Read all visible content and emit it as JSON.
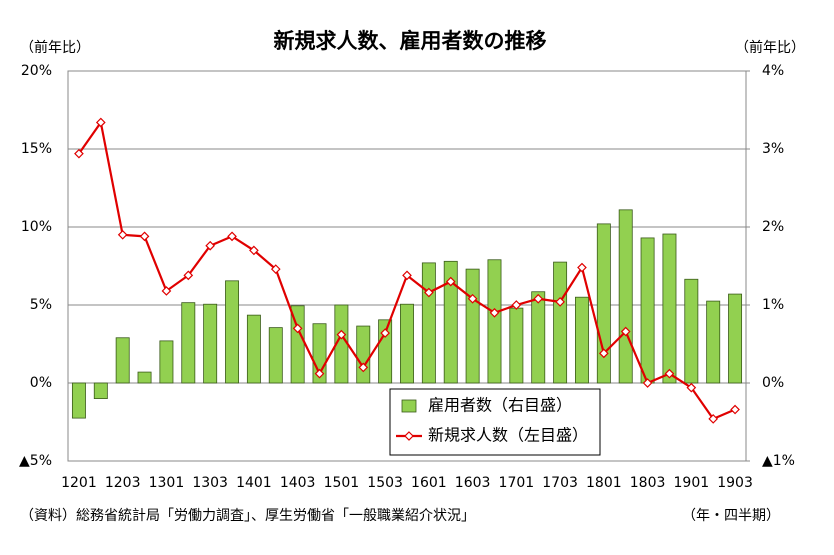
{
  "chart_data": {
    "type": "combo",
    "title": "新規求人数、雇用者数の推移",
    "y_label": "（前年比）",
    "y2_label": "（前年比）",
    "x_label": "（年・四半期）",
    "source": "（資料）総務省統計局「労働力調査」、厚生労働省「一般職業紹介状況」",
    "categories": [
      "1201",
      null,
      "1203",
      null,
      "1301",
      null,
      "1303",
      null,
      "1401",
      null,
      "1403",
      null,
      "1501",
      null,
      "1503",
      null,
      "1601",
      null,
      "1603",
      null,
      "1701",
      null,
      "1703",
      null,
      "1801",
      null,
      "1803",
      null,
      "1901",
      null,
      "1903"
    ],
    "series": [
      {
        "name": "雇用者数（右目盛）",
        "type": "bar",
        "axis": "y2",
        "color": "#92d050",
        "values": [
          -0.45,
          -0.2,
          0.58,
          0.14,
          0.54,
          1.03,
          1.01,
          1.31,
          0.87,
          0.71,
          0.99,
          0.76,
          1.0,
          0.73,
          0.81,
          1.01,
          1.54,
          1.56,
          1.46,
          1.58,
          0.96,
          1.17,
          1.55,
          1.1,
          2.04,
          2.22,
          1.86,
          1.91,
          1.33,
          1.05,
          1.14
        ]
      },
      {
        "name": "新規求人数（左目盛）",
        "type": "line",
        "axis": "y",
        "color": "#e00000",
        "values": [
          14.7,
          16.7,
          9.5,
          9.4,
          5.9,
          6.9,
          8.8,
          9.4,
          8.5,
          7.3,
          3.5,
          0.6,
          3.1,
          1.0,
          3.2,
          6.9,
          5.8,
          6.5,
          5.4,
          4.5,
          5.0,
          5.4,
          5.2,
          7.4,
          1.9,
          3.3,
          0.0,
          0.6,
          -0.3,
          -2.3,
          -1.7
        ]
      }
    ],
    "ylim": [
      -5,
      20
    ],
    "yticks": [
      {
        "value": -5,
        "label": "▲5%"
      },
      {
        "value": 0,
        "label": "0%"
      },
      {
        "value": 5,
        "label": "5%"
      },
      {
        "value": 10,
        "label": "10%"
      },
      {
        "value": 15,
        "label": "15%"
      },
      {
        "value": 20,
        "label": "20%"
      }
    ],
    "y2lim": [
      -1,
      4
    ],
    "y2ticks": [
      {
        "value": -1,
        "label": "▲1%"
      },
      {
        "value": 0,
        "label": "0%"
      },
      {
        "value": 1,
        "label": "1%"
      },
      {
        "value": 2,
        "label": "2%"
      },
      {
        "value": 3,
        "label": "3%"
      },
      {
        "value": 4,
        "label": "4%"
      }
    ],
    "grid": true
  }
}
